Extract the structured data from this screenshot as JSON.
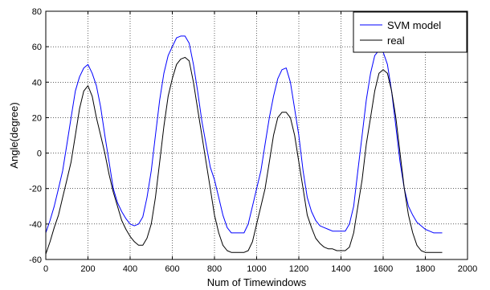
{
  "chart_data": {
    "type": "line",
    "title": "",
    "xlabel": "Num of Timewindows",
    "ylabel": "Angle(degree)",
    "xlim": [
      0,
      2000
    ],
    "ylim": [
      -60,
      80
    ],
    "xticks": [
      0,
      200,
      400,
      600,
      800,
      1000,
      1200,
      1400,
      1600,
      1800,
      2000
    ],
    "yticks": [
      -60,
      -40,
      -20,
      0,
      20,
      40,
      60,
      80
    ],
    "grid": true,
    "legend_position": "top-right",
    "series": [
      {
        "name": "SVM model",
        "color": "#0000ff",
        "x": [
          0,
          20,
          40,
          60,
          80,
          100,
          120,
          140,
          160,
          180,
          200,
          220,
          240,
          260,
          280,
          300,
          320,
          340,
          360,
          380,
          400,
          420,
          440,
          460,
          480,
          500,
          520,
          540,
          560,
          580,
          600,
          620,
          640,
          660,
          680,
          700,
          720,
          740,
          760,
          780,
          800,
          820,
          840,
          860,
          880,
          900,
          920,
          940,
          960,
          980,
          1000,
          1020,
          1040,
          1060,
          1080,
          1100,
          1120,
          1140,
          1160,
          1180,
          1200,
          1220,
          1240,
          1260,
          1280,
          1300,
          1320,
          1340,
          1360,
          1380,
          1400,
          1420,
          1440,
          1460,
          1480,
          1500,
          1520,
          1540,
          1560,
          1580,
          1600,
          1620,
          1640,
          1660,
          1680,
          1700,
          1720,
          1740,
          1760,
          1780,
          1800,
          1820,
          1840,
          1860,
          1880
        ],
        "y": [
          -45,
          -38,
          -30,
          -20,
          -10,
          5,
          20,
          35,
          43,
          48,
          50,
          45,
          38,
          26,
          10,
          -5,
          -20,
          -28,
          -33,
          -37,
          -40,
          -41,
          -40,
          -36,
          -25,
          -10,
          10,
          30,
          45,
          55,
          60,
          65,
          66,
          66,
          62,
          50,
          35,
          18,
          5,
          -8,
          -15,
          -25,
          -35,
          -42,
          -45,
          -45,
          -45,
          -45,
          -40,
          -30,
          -20,
          -10,
          5,
          20,
          32,
          42,
          47,
          48,
          40,
          25,
          10,
          -10,
          -25,
          -33,
          -38,
          -41,
          -42,
          -43,
          -44,
          -44,
          -44,
          -44,
          -40,
          -30,
          -10,
          10,
          30,
          45,
          55,
          58,
          57,
          50,
          35,
          15,
          -5,
          -20,
          -30,
          -35,
          -39,
          -41,
          -43,
          -44,
          -45,
          -45,
          -45
        ]
      },
      {
        "name": "real",
        "color": "#000000",
        "x": [
          0,
          20,
          40,
          60,
          80,
          100,
          120,
          140,
          160,
          180,
          200,
          220,
          240,
          260,
          280,
          300,
          320,
          340,
          360,
          380,
          400,
          420,
          440,
          460,
          480,
          500,
          520,
          540,
          560,
          580,
          600,
          620,
          640,
          660,
          680,
          700,
          720,
          740,
          760,
          780,
          800,
          820,
          840,
          860,
          880,
          900,
          920,
          940,
          960,
          980,
          1000,
          1020,
          1040,
          1060,
          1080,
          1100,
          1120,
          1140,
          1160,
          1180,
          1200,
          1220,
          1240,
          1260,
          1280,
          1300,
          1320,
          1340,
          1360,
          1380,
          1400,
          1420,
          1440,
          1460,
          1480,
          1500,
          1520,
          1540,
          1560,
          1580,
          1600,
          1620,
          1640,
          1660,
          1680,
          1700,
          1720,
          1740,
          1760,
          1780,
          1800,
          1820,
          1840,
          1860,
          1880
        ],
        "y": [
          -57,
          -50,
          -42,
          -35,
          -25,
          -15,
          -5,
          10,
          25,
          35,
          38,
          32,
          20,
          10,
          0,
          -12,
          -22,
          -30,
          -38,
          -43,
          -47,
          -50,
          -52,
          -52,
          -48,
          -40,
          -25,
          -5,
          15,
          32,
          42,
          50,
          53,
          54,
          52,
          40,
          25,
          10,
          -5,
          -20,
          -35,
          -45,
          -52,
          -55,
          -56,
          -56,
          -56,
          -56,
          -55,
          -50,
          -40,
          -30,
          -20,
          -5,
          10,
          20,
          23,
          23,
          20,
          10,
          -5,
          -20,
          -35,
          -42,
          -48,
          -51,
          -53,
          -54,
          -54,
          -55,
          -55,
          -55,
          -53,
          -45,
          -30,
          -15,
          5,
          20,
          35,
          45,
          47,
          45,
          35,
          20,
          0,
          -20,
          -35,
          -45,
          -52,
          -55,
          -56,
          -56,
          -56,
          -56,
          -56
        ]
      }
    ]
  }
}
